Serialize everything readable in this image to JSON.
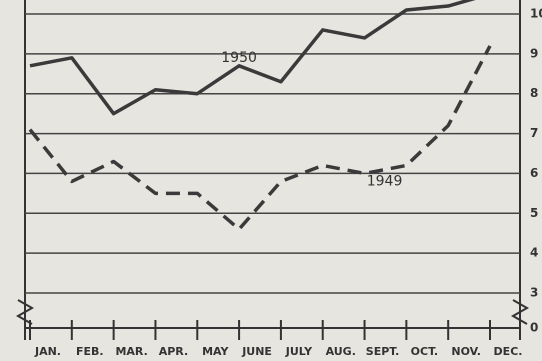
{
  "chart_data": {
    "type": "line",
    "categories": [
      "JAN.",
      "FEB.",
      "MAR.",
      "APR.",
      "MAY",
      "JUNE",
      "JULY",
      "AUG.",
      "SEPT.",
      "OCT.",
      "NOV.",
      "DEC."
    ],
    "series": [
      {
        "name": "1950",
        "color": "#3a3a3a",
        "line_style": "solid",
        "values": [
          8.7,
          8.9,
          7.5,
          8.1,
          8.0,
          8.7,
          8.3,
          9.6,
          9.4,
          10.1,
          10.2,
          10.5
        ]
      },
      {
        "name": "1949",
        "color": "#3a3a3a",
        "line_style": "dashed",
        "values": [
          7.1,
          5.8,
          6.3,
          5.5,
          5.5,
          4.6,
          5.8,
          6.2,
          6.0,
          6.2,
          7.2,
          9.2
        ]
      }
    ],
    "ylim": [
      0,
      10
    ],
    "yticks": [
      0,
      3,
      4,
      5,
      6,
      7,
      8,
      9,
      10
    ],
    "axis_break": [
      0,
      3
    ],
    "grid": true
  }
}
